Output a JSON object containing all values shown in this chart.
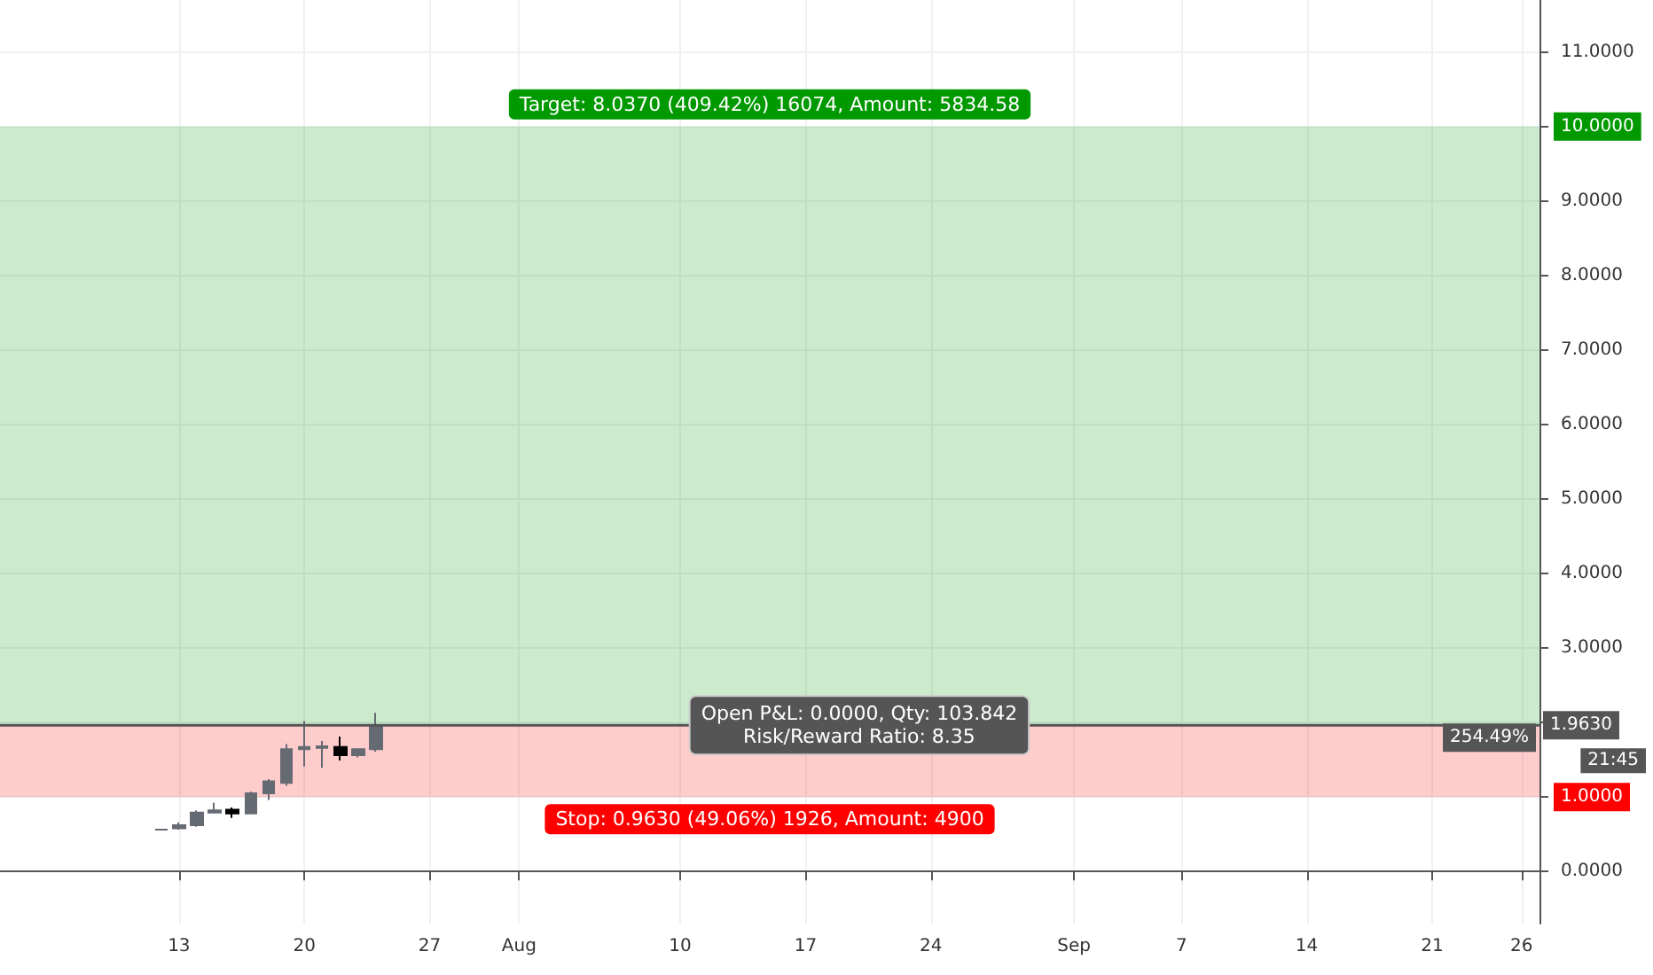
{
  "chart_data": {
    "type": "candlestick",
    "x": [
      "--07-12",
      "--07-13",
      "--07-14",
      "--07-15",
      "--07-16",
      "--07-17",
      "--07-18",
      "--07-19",
      "--07-20",
      "--07-21",
      "--07-22",
      "--07-23",
      "--07-24"
    ],
    "ohlc": [
      [
        0.56,
        0.56,
        0.56,
        0.56
      ],
      [
        0.58,
        0.66,
        0.56,
        0.62
      ],
      [
        0.62,
        0.82,
        0.6,
        0.79
      ],
      [
        0.79,
        0.92,
        0.78,
        0.82
      ],
      [
        0.83,
        0.86,
        0.72,
        0.78
      ],
      [
        0.78,
        1.07,
        0.77,
        1.05
      ],
      [
        1.05,
        1.24,
        0.96,
        1.21
      ],
      [
        1.19,
        1.71,
        1.15,
        1.64
      ],
      [
        1.64,
        2.02,
        1.41,
        1.67
      ],
      [
        1.66,
        1.75,
        1.39,
        1.68
      ],
      [
        1.67,
        1.81,
        1.49,
        1.56
      ],
      [
        1.56,
        1.65,
        1.53,
        1.64
      ],
      [
        1.64,
        2.13,
        1.61,
        1.963
      ]
    ],
    "xlim": [
      "--07-03",
      "--09-27"
    ],
    "xticks": [
      {
        "value": "--07-13",
        "label": "13"
      },
      {
        "value": "--07-20",
        "label": "20"
      },
      {
        "value": "--07-27",
        "label": "27"
      },
      {
        "value": "--08-01",
        "label": "Aug"
      },
      {
        "value": "--08-10",
        "label": "10"
      },
      {
        "value": "--08-17",
        "label": "17"
      },
      {
        "value": "--08-24",
        "label": "24"
      },
      {
        "value": "--09-01",
        "label": "Sep"
      },
      {
        "value": "--09-07",
        "label": "7"
      },
      {
        "value": "--09-14",
        "label": "14"
      },
      {
        "value": "--09-21",
        "label": "21"
      },
      {
        "value": "--09-26",
        "label": "26"
      }
    ],
    "ylim": [
      -0.7,
      11.7
    ],
    "yticks": [
      {
        "value": 0,
        "label": "0.0000"
      },
      {
        "value": 1,
        "label": "1.0000"
      },
      {
        "value": 2,
        "label": null
      },
      {
        "value": 3,
        "label": "3.0000"
      },
      {
        "value": 4,
        "label": "4.0000"
      },
      {
        "value": 5,
        "label": "5.0000"
      },
      {
        "value": 6,
        "label": "6.0000"
      },
      {
        "value": 7,
        "label": "7.0000"
      },
      {
        "value": 8,
        "label": "8.0000"
      },
      {
        "value": 9,
        "label": "9.0000"
      },
      {
        "value": 10,
        "label": "10.0000"
      },
      {
        "value": 11,
        "label": "11.0000"
      }
    ],
    "bands": [
      {
        "axis": "y",
        "from": 1.963,
        "to": 10,
        "label": "Target: 8.0370 (409.42%) 16074, Amount: 5834.58",
        "color": "#009900"
      },
      {
        "axis": "y",
        "from": 1,
        "to": 1.963,
        "label": "Stop: 0.9630 (49.06%) 1926, Amount: 4900",
        "color": "#ff0000"
      }
    ],
    "ref_lines": [
      {
        "axis": "y",
        "value": 1.963,
        "label": "1.9630",
        "color": "#555555"
      }
    ],
    "annotations": [
      {
        "text": "Open P&L: 0.0000, Qty: 103.842\nRisk/Reward Ratio: 8.35",
        "x": "--08-20",
        "y": 1.963
      },
      {
        "text": "254.49%",
        "y": 1.963
      },
      "21:45"
    ],
    "grid": true
  }
}
